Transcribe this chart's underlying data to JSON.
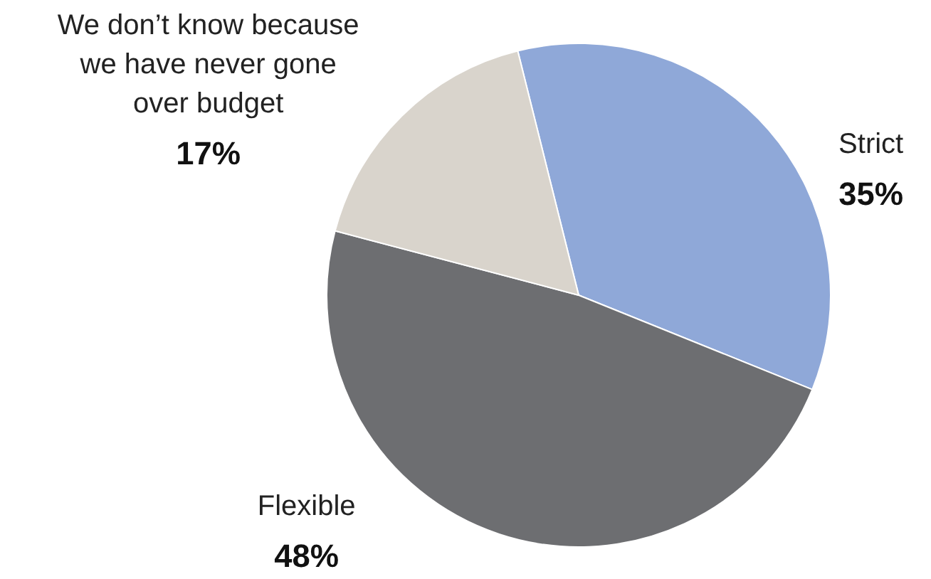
{
  "chart_data": {
    "type": "pie",
    "categories": [
      "Strict",
      "Flexible",
      "We don’t know because we have never gone over budget"
    ],
    "values": [
      35,
      48,
      17
    ],
    "colors": [
      "#8fa8d8",
      "#6d6e71",
      "#d9d4cc"
    ],
    "value_labels": [
      "35%",
      "48%",
      "17%"
    ]
  }
}
